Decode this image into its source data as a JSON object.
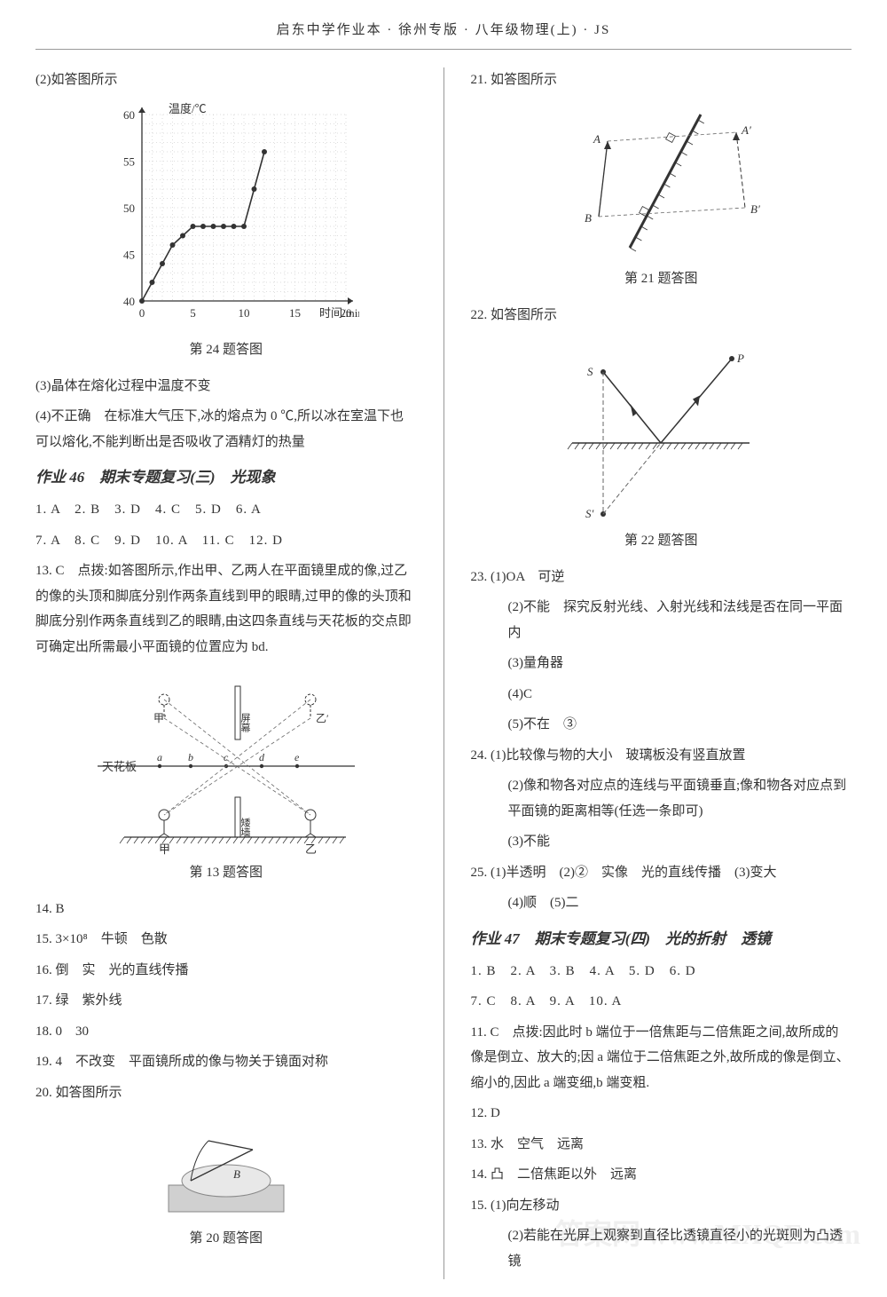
{
  "header": "启东中学作业本 · 徐州专版 · 八年级物理(上) · JS",
  "watermark": "答案网\nwww.MXQE.com",
  "left": {
    "q2": "(2)如答图所示",
    "chart24": {
      "type": "line",
      "title": "第 24 题答图",
      "xlabel": "时间/min",
      "ylabel": "温度/℃",
      "xlim": [
        0,
        20
      ],
      "ylim": [
        40,
        60
      ],
      "xticks": [
        0,
        5,
        10,
        15,
        20
      ],
      "yticks": [
        40,
        45,
        50,
        55,
        60
      ],
      "grid_color": "#bdbdbd",
      "dot_color": "#333333",
      "line_color": "#333333",
      "bg": "#ffffff",
      "points": [
        [
          0,
          40
        ],
        [
          1,
          42
        ],
        [
          2,
          44
        ],
        [
          3,
          46
        ],
        [
          4,
          47
        ],
        [
          5,
          48
        ],
        [
          6,
          48
        ],
        [
          7,
          48
        ],
        [
          8,
          48
        ],
        [
          9,
          48
        ],
        [
          10,
          48
        ],
        [
          11,
          52
        ],
        [
          12,
          56
        ]
      ]
    },
    "q3": "(3)晶体在熔化过程中温度不变",
    "q4": "(4)不正确　在标准大气压下,冰的熔点为 0 ℃,所以冰在室温下也可以熔化,不能判断出是否吸收了酒精灯的热量",
    "hw46": "作业 46　期末专题复习(三)　光现象",
    "mc1": "1. A　2. B　3. D　4. C　5. D　6. A",
    "mc2": "7. A　8. C　9. D　10. A　11. C　12. D",
    "q13": "13. C　点拨:如答图所示,作出甲、乙两人在平面镜里成的像,过乙的像的头顶和脚底分别作两条直线到甲的眼睛,过甲的像的头顶和脚底分别作两条直线到乙的眼睛,由这四条直线与天花板的交点即可确定出所需最小平面镜的位置应为 bd.",
    "fig13": {
      "type": "diagram",
      "caption": "第 13 题答图",
      "labels": {
        "ceiling": "天花板",
        "jia": "甲",
        "yi": "乙",
        "jia2": "甲′",
        "yi2": "乙′",
        "a": "a",
        "b": "b",
        "c": "c",
        "d": "d",
        "e": "e",
        "mirror": "屏幕",
        "short_wall": "矮墙"
      },
      "line_color": "#333333",
      "dash_color": "#666666",
      "bg": "#ffffff"
    },
    "q14": "14. B",
    "q15": "15. 3×10⁸　牛顿　色散",
    "q16": "16. 倒　实　光的直线传播",
    "q17": "17. 绿　紫外线",
    "q18": "18. 0　30",
    "q19": "19. 4　不改变　平面镜所成的像与物关于镜面对称",
    "q20": "20. 如答图所示",
    "fig20": {
      "type": "image-placeholder",
      "caption": "第 20 题答图",
      "desc": "日晷光线图",
      "bg": "#d0d0d0",
      "outline": "#888888",
      "labels": {
        "B": "B"
      }
    }
  },
  "right": {
    "q21": "21. 如答图所示",
    "fig21": {
      "type": "diagram",
      "caption": "第 21 题答图",
      "labels": {
        "A": "A",
        "B": "B",
        "A2": "A′",
        "B2": "B′"
      },
      "mirror_color": "#333333",
      "dash_color": "#666666"
    },
    "q22": "22. 如答图所示",
    "fig22": {
      "type": "diagram",
      "caption": "第 22 题答图",
      "labels": {
        "S": "S",
        "P": "P",
        "S2": "S′"
      },
      "mirror_hatch": "#333333",
      "ray_color": "#333333",
      "dash_color": "#666666"
    },
    "q23_1": "23. (1)OA　可逆",
    "q23_2": "(2)不能　探究反射光线、入射光线和法线是否在同一平面内",
    "q23_3": "(3)量角器",
    "q23_4": "(4)C",
    "q23_5": "(5)不在　③",
    "q24_1": "24. (1)比较像与物的大小　玻璃板没有竖直放置",
    "q24_2": "(2)像和物各对应点的连线与平面镜垂直;像和物各对应点到平面镜的距离相等(任选一条即可)",
    "q24_3": "(3)不能",
    "q25_1": "25. (1)半透明　(2)②　实像　光的直线传播　(3)变大",
    "q25_2": "(4)顺　(5)二",
    "hw47": "作业 47　期末专题复习(四)　光的折射　透镜",
    "mc1": "1. B　2. A　3. B　4. A　5. D　6. D",
    "mc2": "7. C　8. A　9. A　10. A",
    "q11": "11. C　点拨:因此时 b 端位于一倍焦距与二倍焦距之间,故所成的像是倒立、放大的;因 a 端位于二倍焦距之外,故所成的像是倒立、缩小的,因此 a 端变细,b 端变粗.",
    "q12": "12. D",
    "q13": "13. 水　空气　远离",
    "q14": "14. 凸　二倍焦距以外　远离",
    "q15_1": "15. (1)向左移动",
    "q15_2": "(2)若能在光屏上观察到直径比透镜直径小的光斑则为凸透镜"
  }
}
